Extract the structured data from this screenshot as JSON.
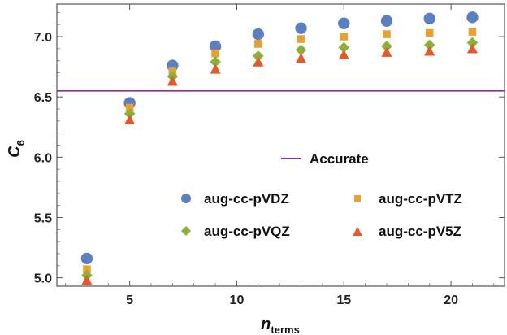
{
  "chart_data": {
    "type": "scatter",
    "x": [
      3,
      5,
      7,
      9,
      11,
      13,
      15,
      17,
      19,
      21
    ],
    "xlabel": {
      "main": "n",
      "sub": "terms"
    },
    "ylabel": {
      "main": "C",
      "sub": "6"
    },
    "xlim": [
      1.6,
      22.5
    ],
    "ylim": [
      4.93,
      7.27
    ],
    "xticks": [
      5,
      10,
      15,
      20
    ],
    "yticks": [
      5.0,
      5.5,
      6.0,
      6.5,
      7.0
    ],
    "xtick_labels": [
      "5",
      "10",
      "15",
      "20"
    ],
    "ytick_labels": [
      "5.0",
      "5.5",
      "6.0",
      "6.5",
      "7.0"
    ],
    "reference_line": {
      "name": "Accurate",
      "y": 6.55,
      "color": "#9b2d8a"
    },
    "series": [
      {
        "name": "aug-cc-pVDZ",
        "marker": "circle",
        "color": "#5b7fbf",
        "values": [
          5.16,
          6.45,
          6.76,
          6.92,
          7.02,
          7.07,
          7.11,
          7.13,
          7.15,
          7.16
        ]
      },
      {
        "name": "aug-cc-pVTZ",
        "marker": "square",
        "color": "#e8a232",
        "values": [
          5.07,
          6.41,
          6.71,
          6.86,
          6.94,
          6.98,
          7.0,
          7.02,
          7.03,
          7.04
        ]
      },
      {
        "name": "aug-cc-pVQZ",
        "marker": "diamond",
        "color": "#8bb03a",
        "values": [
          5.02,
          6.36,
          6.67,
          6.79,
          6.84,
          6.89,
          6.91,
          6.92,
          6.93,
          6.95
        ]
      },
      {
        "name": "aug-cc-pV5Z",
        "marker": "triangle",
        "color": "#e05a2b",
        "values": [
          4.98,
          6.31,
          6.63,
          6.73,
          6.79,
          6.82,
          6.85,
          6.87,
          6.88,
          6.9
        ]
      }
    ],
    "legend_position": "center-right",
    "grid": false
  }
}
